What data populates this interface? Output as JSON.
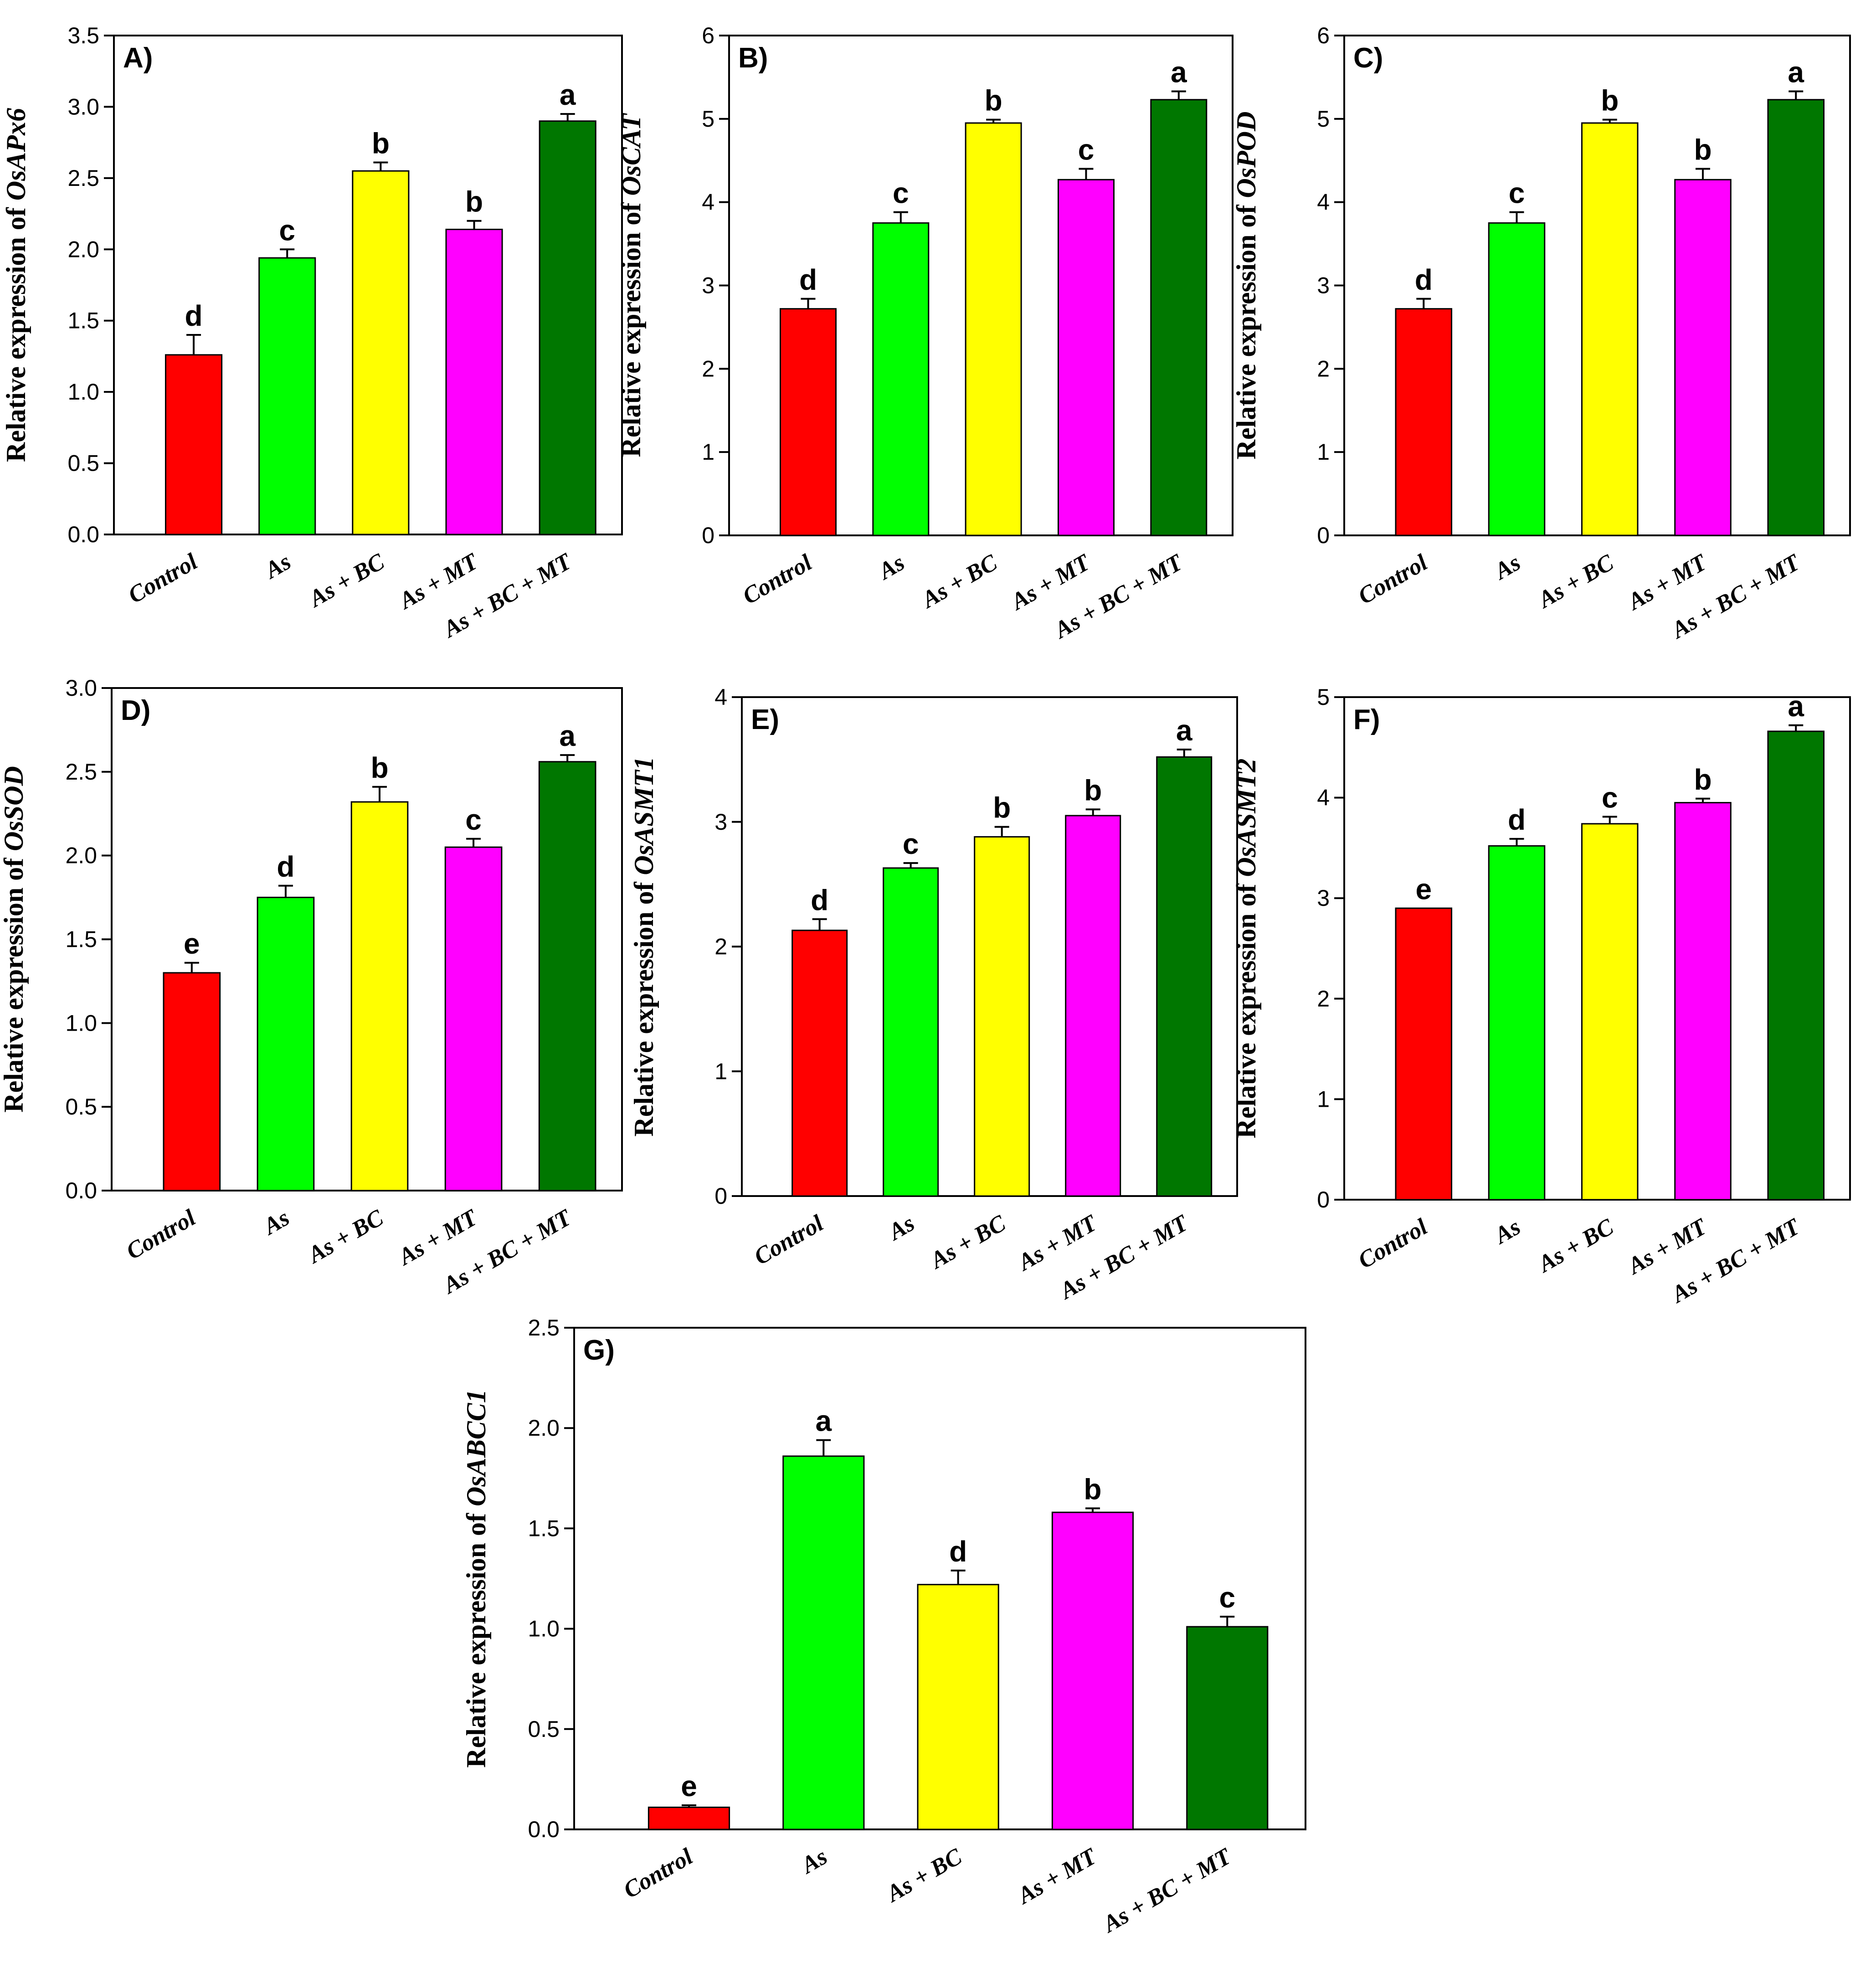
{
  "colors": {
    "Control": "#ff0000",
    "As": "#00ff00",
    "As + BC": "#ffff00",
    "As + MT": "#ff00ff",
    "As + BC + MT": "#007700"
  },
  "chart_data": [
    {
      "type": "bar",
      "panel": "A)",
      "ylabel_prefix": "Relative expression of ",
      "gene": "OsAPx6",
      "categories": [
        "Control",
        "As",
        "As + BC",
        "As + MT",
        "As + BC + MT"
      ],
      "values": [
        1.26,
        1.94,
        2.55,
        2.14,
        2.9
      ],
      "errors": [
        0.14,
        0.06,
        0.06,
        0.06,
        0.05
      ],
      "letters": [
        "d",
        "c",
        "b",
        "b",
        "a"
      ],
      "ylim": [
        0,
        3.5
      ],
      "yticks": [
        "0.0",
        "0.5",
        "1.0",
        "1.5",
        "2.0",
        "2.5",
        "3.0",
        "3.5"
      ]
    },
    {
      "type": "bar",
      "panel": "B)",
      "ylabel_prefix": "Relative expression of ",
      "gene": "OsCAT",
      "categories": [
        "Control",
        "As",
        "As + BC",
        "As + MT",
        "As + BC + MT"
      ],
      "values": [
        2.72,
        3.75,
        4.95,
        4.27,
        5.23
      ],
      "errors": [
        0.12,
        0.13,
        0.04,
        0.13,
        0.1
      ],
      "letters": [
        "d",
        "c",
        "b",
        "c",
        "a"
      ],
      "ylim": [
        0,
        6
      ],
      "yticks": [
        "0",
        "1",
        "2",
        "3",
        "4",
        "5",
        "6"
      ]
    },
    {
      "type": "bar",
      "panel": "C)",
      "ylabel_prefix": "Relative expression of ",
      "gene": "OsPOD",
      "categories": [
        "Control",
        "As",
        "As + BC",
        "As + MT",
        "As + BC + MT"
      ],
      "values": [
        2.72,
        3.75,
        4.95,
        4.27,
        5.23
      ],
      "errors": [
        0.12,
        0.13,
        0.04,
        0.13,
        0.1
      ],
      "letters": [
        "d",
        "c",
        "b",
        "b",
        "a"
      ],
      "ylim": [
        0,
        6
      ],
      "yticks": [
        "0",
        "1",
        "2",
        "3",
        "4",
        "5",
        "6"
      ]
    },
    {
      "type": "bar",
      "panel": "D)",
      "ylabel_prefix": "Relative expression of ",
      "gene": "OsSOD",
      "categories": [
        "Control",
        "As",
        "As + BC",
        "As + MT",
        "As + BC + MT"
      ],
      "values": [
        1.3,
        1.75,
        2.32,
        2.05,
        2.56
      ],
      "errors": [
        0.06,
        0.07,
        0.09,
        0.05,
        0.04
      ],
      "letters": [
        "e",
        "d",
        "b",
        "c",
        "a"
      ],
      "ylim": [
        0,
        3.0
      ],
      "yticks": [
        "0.0",
        "0.5",
        "1.0",
        "1.5",
        "2.0",
        "2.5",
        "3.0"
      ]
    },
    {
      "type": "bar",
      "panel": "E)",
      "ylabel_prefix": "Relative expression of ",
      "gene": "OsASMT1",
      "categories": [
        "Control",
        "As",
        "As + BC",
        "As + MT",
        "As + BC + MT"
      ],
      "values": [
        2.13,
        2.63,
        2.88,
        3.05,
        3.52
      ],
      "errors": [
        0.09,
        0.04,
        0.08,
        0.05,
        0.06
      ],
      "letters": [
        "d",
        "c",
        "b",
        "b",
        "a"
      ],
      "ylim": [
        0,
        4
      ],
      "yticks": [
        "0",
        "1",
        "2",
        "3",
        "4"
      ]
    },
    {
      "type": "bar",
      "panel": "F)",
      "ylabel_prefix": "Relative expression of ",
      "gene": "OsASMT2",
      "categories": [
        "Control",
        "As",
        "As + BC",
        "As + MT",
        "As + BC + MT"
      ],
      "values": [
        2.9,
        3.52,
        3.74,
        3.95,
        4.66
      ],
      "errors": [
        0.0,
        0.07,
        0.07,
        0.04,
        0.06
      ],
      "letters": [
        "e",
        "d",
        "c",
        "b",
        "a"
      ],
      "ylim": [
        0,
        5
      ],
      "yticks": [
        "0",
        "1",
        "2",
        "3",
        "4",
        "5"
      ]
    },
    {
      "type": "bar",
      "panel": "G)",
      "ylabel_prefix": "Relative expression of ",
      "gene": "OsABCC1",
      "categories": [
        "Control",
        "As",
        "As + BC",
        "As + MT",
        "As + BC + MT"
      ],
      "values": [
        0.11,
        1.86,
        1.22,
        1.58,
        1.01
      ],
      "errors": [
        0.01,
        0.08,
        0.07,
        0.02,
        0.05
      ],
      "letters": [
        "e",
        "a",
        "d",
        "b",
        "c"
      ],
      "ylim": [
        0,
        2.5
      ],
      "yticks": [
        "0.0",
        "0.5",
        "1.0",
        "1.5",
        "2.0",
        "2.5"
      ]
    }
  ]
}
